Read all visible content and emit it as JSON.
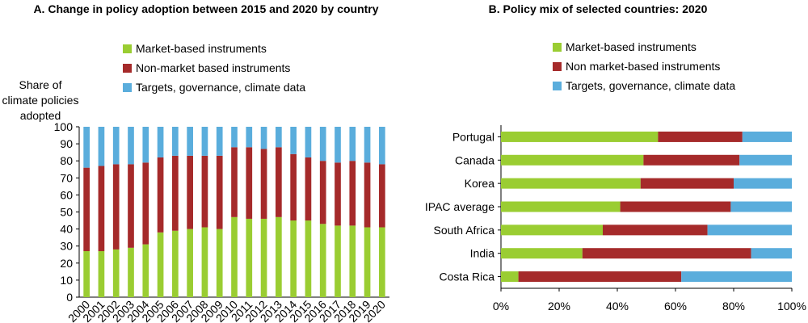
{
  "colors": {
    "market": "#9ACD32",
    "nonmarket": "#A52A2A",
    "targets": "#5AADDC"
  },
  "chart_data": [
    {
      "type": "bar",
      "stacked": true,
      "title": "A. Change in policy adoption between 2015 and 2020 by country",
      "ylabel": "Share of climate policies adopted",
      "ylim": [
        0,
        100
      ],
      "yticks": [
        0,
        10,
        20,
        30,
        40,
        50,
        60,
        70,
        80,
        90,
        100
      ],
      "legend_position": "top",
      "categories": [
        "2000",
        "2001",
        "2002",
        "2003",
        "2004",
        "2005",
        "2006",
        "2007",
        "2008",
        "2009",
        "2010",
        "2011",
        "2012",
        "2013",
        "2014",
        "2015",
        "2016",
        "2017",
        "2018",
        "2019",
        "2020"
      ],
      "series": [
        {
          "name": "Market-based instruments",
          "values": [
            27,
            27,
            28,
            29,
            31,
            38,
            39,
            40,
            41,
            40,
            47,
            46,
            46,
            47,
            45,
            45,
            43,
            42,
            42,
            41,
            41
          ]
        },
        {
          "name": "Non-market based instruments",
          "values": [
            49,
            50,
            50,
            49,
            48,
            44,
            44,
            43,
            42,
            43,
            41,
            42,
            41,
            41,
            39,
            37,
            37,
            37,
            38,
            38,
            37
          ]
        },
        {
          "name": "Targets, governance, climate data",
          "values": [
            24,
            23,
            22,
            22,
            21,
            18,
            17,
            17,
            17,
            17,
            12,
            12,
            13,
            12,
            16,
            18,
            20,
            21,
            20,
            21,
            22
          ]
        }
      ]
    },
    {
      "type": "bar",
      "orientation": "horizontal",
      "stacked": true,
      "title": "B. Policy mix of selected countries: 2020",
      "xlim": [
        0,
        100
      ],
      "xticks": [
        "0%",
        "20%",
        "40%",
        "60%",
        "80%",
        "100%"
      ],
      "legend_position": "top",
      "categories": [
        "Portugal",
        "Canada",
        "Korea",
        "IPAC average",
        "South Africa",
        "India",
        "Costa Rica"
      ],
      "series": [
        {
          "name": "Market-based instruments",
          "values": [
            54,
            49,
            48,
            41,
            35,
            28,
            6
          ]
        },
        {
          "name": "Non market-based instruments",
          "values": [
            29,
            33,
            32,
            38,
            36,
            58,
            56
          ]
        },
        {
          "name": "Targets, governance, climate data",
          "values": [
            17,
            18,
            20,
            21,
            29,
            14,
            38
          ]
        }
      ]
    }
  ]
}
